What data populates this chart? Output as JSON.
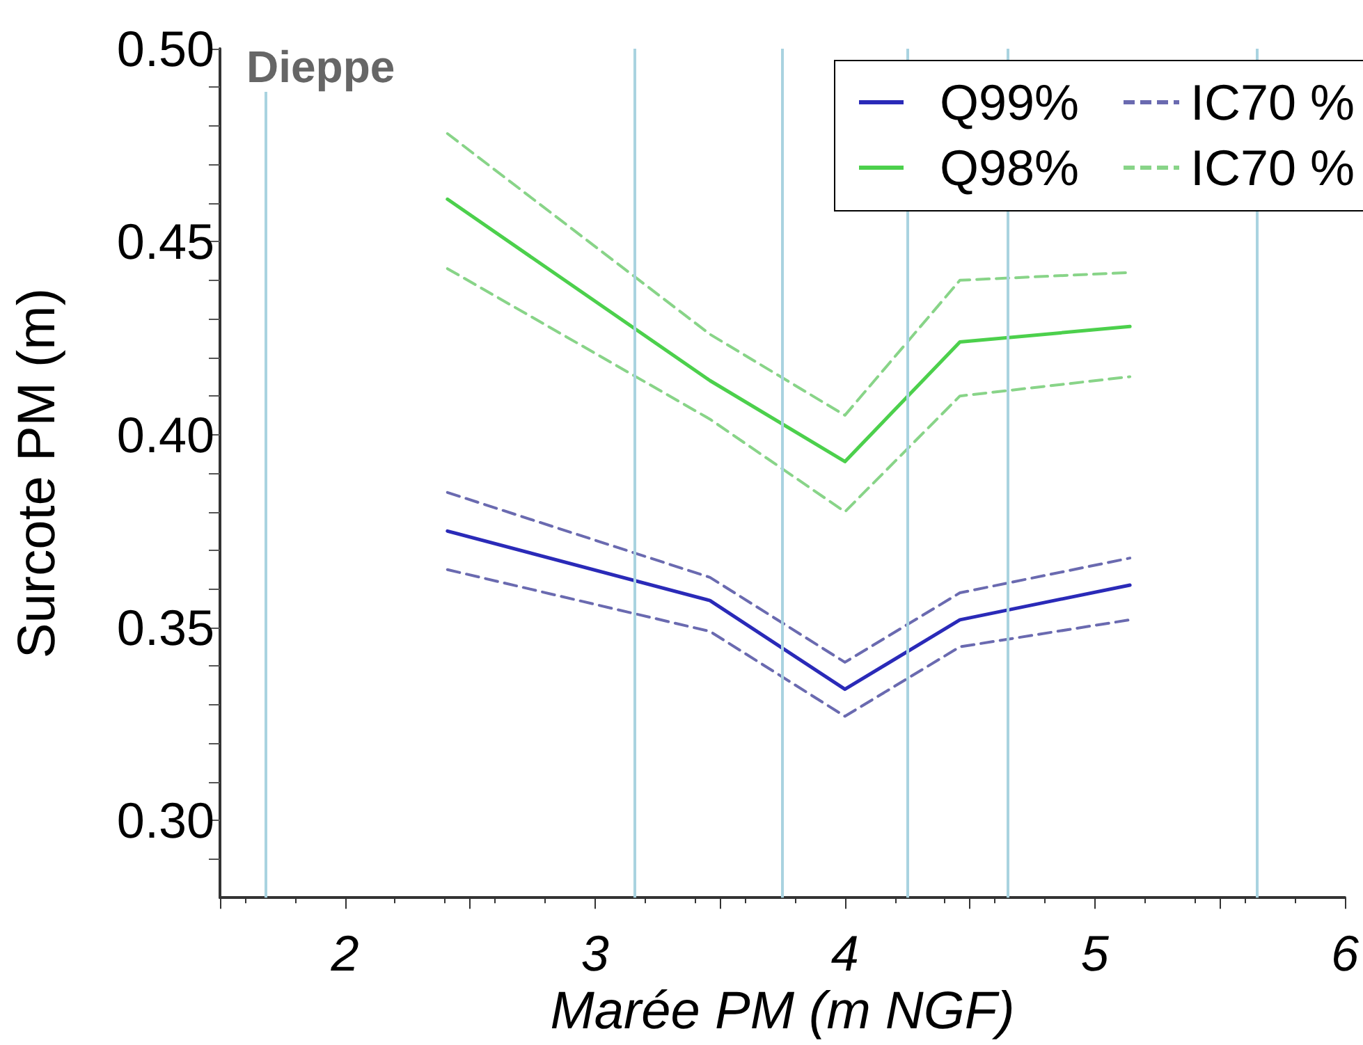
{
  "chart_data": {
    "type": "line",
    "title": "Dieppe",
    "xlabel": "Marée PM (m NGF)",
    "ylabel": "Surcote PM (m)",
    "x": [
      2.41,
      3.46,
      4.0,
      4.46,
      5.14
    ],
    "series": [
      {
        "name": "Q99%",
        "color": "#2a2ab8",
        "line_style": "solid",
        "values": [
          0.375,
          0.357,
          0.334,
          0.352,
          0.361
        ]
      },
      {
        "name": "IC70 %",
        "color": "#6a6ab0",
        "line_style": "dashed",
        "values": [
          0.385,
          0.363,
          0.341,
          0.359,
          0.368
        ]
      },
      {
        "color": "#6a6ab0",
        "line_style": "dashed",
        "values": [
          0.365,
          0.349,
          0.327,
          0.345,
          0.352
        ]
      },
      {
        "name": "Q98%",
        "color": "#4cd04c",
        "line_style": "solid",
        "values": [
          0.461,
          0.414,
          0.393,
          0.424,
          0.428
        ]
      },
      {
        "name": "IC70 %",
        "color": "#88d488",
        "line_style": "dashed",
        "values": [
          0.478,
          0.426,
          0.405,
          0.44,
          0.442
        ]
      },
      {
        "color": "#88d488",
        "line_style": "dashed",
        "values": [
          0.443,
          0.404,
          0.38,
          0.41,
          0.415
        ]
      }
    ],
    "xlim": [
      1.5,
      6
    ],
    "xticks": [
      {
        "value": 1.5,
        "label": null
      },
      2,
      {
        "value": 2.5,
        "label": null
      },
      3,
      {
        "value": 3.5,
        "label": null
      },
      4,
      {
        "value": 4.5,
        "label": null
      },
      5,
      {
        "value": 5.5,
        "label": null
      },
      6
    ],
    "ylim": [
      0.28,
      0.5
    ],
    "yticks": [
      {
        "value": 0.29,
        "label": null
      },
      "0.30",
      {
        "value": 0.31,
        "label": null
      },
      {
        "value": 0.32,
        "label": null
      },
      {
        "value": 0.33,
        "label": null
      },
      {
        "value": 0.34,
        "label": null
      },
      0.35,
      {
        "value": 0.36,
        "label": null
      },
      {
        "value": 0.37,
        "label": null
      },
      {
        "value": 0.38,
        "label": null
      },
      {
        "value": 0.39,
        "label": null
      },
      {
        "value": 0.4,
        "label": "0.40"
      },
      {
        "value": 0.41,
        "label": null
      },
      {
        "value": 0.42,
        "label": null
      },
      {
        "value": 0.43,
        "label": null
      },
      {
        "value": 0.44,
        "label": null
      },
      0.45,
      {
        "value": 0.46,
        "label": null
      },
      {
        "value": 0.47,
        "label": null
      },
      {
        "value": 0.48,
        "label": null
      },
      {
        "value": 0.49,
        "label": null
      },
      {
        "value": 0.5,
        "label": "0.50"
      }
    ],
    "ref_lines": [
      {
        "axis": "x",
        "value": 1.68,
        "color": "#a9d3e0"
      },
      {
        "axis": "x",
        "value": 3.16,
        "color": "#a9d3e0"
      },
      {
        "axis": "x",
        "value": 3.75,
        "color": "#a9d3e0"
      },
      {
        "axis": "x",
        "value": 4.25,
        "color": "#a9d3e0"
      },
      {
        "axis": "x",
        "value": 4.65,
        "color": "#a9d3e0"
      },
      {
        "axis": "x",
        "value": 5.65,
        "color": "#a9d3e0"
      }
    ],
    "grid": false,
    "legend": "top right"
  }
}
